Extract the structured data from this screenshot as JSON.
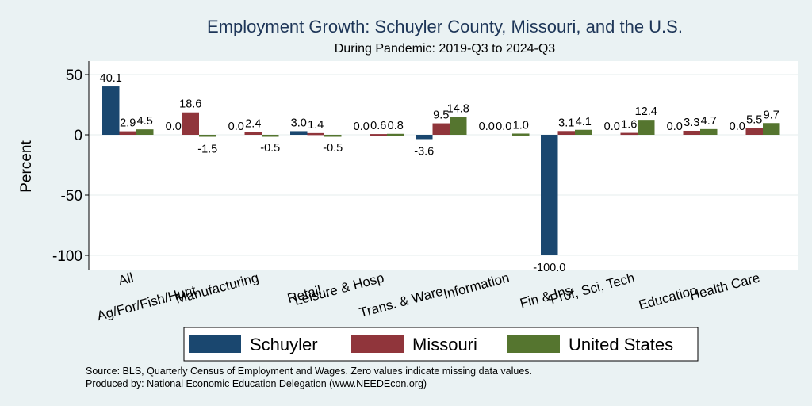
{
  "chart_data": {
    "type": "bar",
    "title": "Employment Growth: Schuyler County, Missouri, and the U.S.",
    "subtitle": "During Pandemic: 2019-Q3 to 2024-Q3",
    "ylabel": "Percent",
    "xlabel": "",
    "ylim": [
      -105,
      55
    ],
    "yticks": [
      50,
      0,
      -50,
      -100
    ],
    "grid": true,
    "legend_position": "bottom",
    "categories": [
      "All",
      "Ag/For/Fish/Hunt",
      "Manufacturing",
      "Retail",
      "Leisure & Hosp",
      "Trans. & Ware.",
      "Information",
      "Fin & Ins",
      "Prof, Sci, Tech",
      "Education",
      "Health Care"
    ],
    "series": [
      {
        "name": "Schuyler",
        "color": "#1a476f",
        "values": [
          40.1,
          0.0,
          0.0,
          3.0,
          0.0,
          -3.6,
          0.0,
          -100.0,
          0.0,
          0.0,
          0.0
        ]
      },
      {
        "name": "Missouri",
        "color": "#90353b",
        "values": [
          2.9,
          18.6,
          2.4,
          1.4,
          0.6,
          9.5,
          0.0,
          3.1,
          1.6,
          3.3,
          5.5
        ]
      },
      {
        "name": "United States",
        "color": "#55752f",
        "values": [
          4.5,
          -1.5,
          -0.5,
          -0.5,
          0.8,
          14.8,
          1.0,
          4.1,
          12.4,
          4.7,
          9.7
        ]
      }
    ],
    "data_labels": [
      [
        "40.1",
        "0.0",
        "0.0",
        "3.0",
        "0.0",
        "-3.6",
        "0.0",
        "-100.0",
        "0.0",
        "0.0",
        "0.0"
      ],
      [
        "2.9",
        "18.6",
        "2.4",
        "1.4",
        "0.6",
        "9.5",
        "0.0",
        "3.1",
        "1.6",
        "3.3",
        "5.5"
      ],
      [
        "4.5",
        "-1.5",
        "-0.5",
        "-0.5",
        "0.8",
        "14.8",
        "1.0",
        "4.1",
        "12.4",
        "4.7",
        "9.7"
      ]
    ],
    "notes": [
      "Source: BLS, Quarterly Census of Employment and Wages. Zero values indicate missing data values.",
      "Produced by: National Economic Education Delegation (www.NEEDEcon.org)"
    ]
  }
}
